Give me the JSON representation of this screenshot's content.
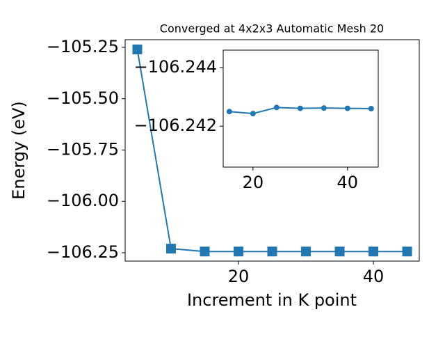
{
  "chart_data": [
    {
      "type": "line",
      "title": "Converged at 4x2x3 Automatic Mesh 20",
      "x_label": "Increment in K point",
      "y_label": "Energy (eV)",
      "x": [
        5,
        10,
        15,
        20,
        25,
        30,
        35,
        40,
        45
      ],
      "series": [
        {
          "color": "#1f77b4",
          "marker": "square",
          "values": [
            -105.26,
            -106.23,
            -106.244,
            -106.244,
            -106.244,
            -106.244,
            -106.244,
            -106.244,
            -106.244
          ]
        }
      ],
      "xlim": [
        3.2,
        46.8
      ],
      "ylim": [
        -106.2907,
        -105.2127
      ],
      "xticks": [
        20,
        40
      ],
      "yticks": [
        {
          "value": -105.25,
          "label": "−105.25"
        },
        {
          "value": -105.5,
          "label": "−105.50"
        },
        {
          "value": -105.75,
          "label": "−105.75"
        },
        {
          "value": -106,
          "label": "−106.00"
        },
        {
          "value": -106.25,
          "label": "−106.25"
        }
      ]
    },
    {
      "type": "line",
      "x": [
        15,
        20,
        25,
        30,
        35,
        40,
        45
      ],
      "series": [
        {
          "color": "#1f77b4",
          "marker": "circle",
          "values": [
            -106.2425,
            -106.24243,
            -106.24264,
            -106.24261,
            -106.24262,
            -106.24261,
            -106.2426
          ]
        }
      ],
      "xlim": [
        13.7,
        46.5
      ],
      "ylim": [
        -106.2406,
        -106.2446
      ],
      "xticks": [
        20,
        40
      ],
      "yticks": [
        {
          "value": -106.244,
          "label": "−106.244"
        },
        {
          "value": -106.242,
          "label": "−106.242"
        }
      ]
    }
  ]
}
